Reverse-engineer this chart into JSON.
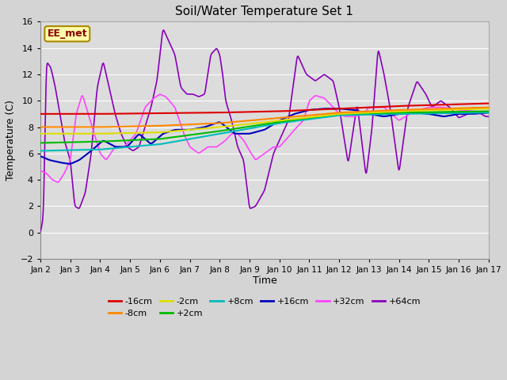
{
  "title": "Soil/Water Temperature Set 1",
  "xlabel": "Time",
  "ylabel": "Temperature (C)",
  "ylim": [
    -2,
    16
  ],
  "xlim": [
    0,
    15
  ],
  "annotation": "EE_met",
  "fig_facecolor": "#d8d8d8",
  "ax_facecolor": "#e0e0e0",
  "legend": [
    {
      "label": "-16cm",
      "color": "#dd0000"
    },
    {
      "label": "-8cm",
      "color": "#ff8800"
    },
    {
      "label": "-2cm",
      "color": "#dddd00"
    },
    {
      "label": "+2cm",
      "color": "#00bb00"
    },
    {
      "label": "+8cm",
      "color": "#00bbbb"
    },
    {
      "label": "+16cm",
      "color": "#0000bb"
    },
    {
      "label": "+32cm",
      "color": "#ff44ff"
    },
    {
      "label": "+64cm",
      "color": "#8800bb"
    }
  ],
  "xtick_labels": [
    "Jan 2",
    "Jan 3",
    "Jan 4",
    "Jan 5",
    "Jan 6",
    "Jan 7",
    "Jan 8",
    "Jan 9",
    "Jan 10",
    "Jan 11",
    "Jan 12",
    "Jan 13",
    "Jan 14",
    "Jan 15",
    "Jan 16",
    "Jan 17"
  ],
  "ytick_values": [
    -2,
    0,
    2,
    4,
    6,
    8,
    10,
    12,
    14,
    16
  ],
  "cp_m16_x": [
    0,
    2,
    4,
    6,
    8,
    10,
    12,
    15
  ],
  "cp_m16_y": [
    9.0,
    9.0,
    9.05,
    9.1,
    9.2,
    9.4,
    9.6,
    9.8
  ],
  "cp_m8_x": [
    0,
    2,
    4,
    6,
    8,
    10,
    12,
    15
  ],
  "cp_m8_y": [
    8.0,
    8.0,
    8.1,
    8.3,
    8.7,
    9.1,
    9.3,
    9.5
  ],
  "cp_m2_x": [
    0,
    2,
    4,
    6,
    8,
    10,
    12,
    15
  ],
  "cp_m2_y": [
    7.5,
    7.5,
    7.6,
    8.0,
    8.5,
    9.0,
    9.2,
    9.4
  ],
  "cp_p2_x": [
    0,
    2,
    4,
    6,
    8,
    10,
    12,
    15
  ],
  "cp_p2_y": [
    6.8,
    6.9,
    7.1,
    7.7,
    8.4,
    9.0,
    9.1,
    9.2
  ],
  "cp_p8_x": [
    0,
    2,
    4,
    6,
    8,
    10,
    12,
    15
  ],
  "cp_p8_y": [
    6.2,
    6.3,
    6.7,
    7.5,
    8.3,
    8.9,
    9.0,
    9.1
  ],
  "cp_p16_x": [
    0,
    0.3,
    0.7,
    1.0,
    1.3,
    1.7,
    2.1,
    2.5,
    2.9,
    3.3,
    3.7,
    4.1,
    4.5,
    5.0,
    5.5,
    6.0,
    6.5,
    7.0,
    7.5,
    8.0,
    8.5,
    9.0,
    9.5,
    10.0,
    10.5,
    11.0,
    11.5,
    12.0,
    12.5,
    13.0,
    13.5,
    14.0,
    14.5,
    15.0
  ],
  "cp_p16_y": [
    5.8,
    5.5,
    5.3,
    5.2,
    5.5,
    6.2,
    7.0,
    6.5,
    6.5,
    7.5,
    6.7,
    7.5,
    7.8,
    7.8,
    8.0,
    8.4,
    7.5,
    7.5,
    7.8,
    8.5,
    9.0,
    9.3,
    9.4,
    9.4,
    9.3,
    9.0,
    8.8,
    9.0,
    9.1,
    9.0,
    8.8,
    9.0,
    9.0,
    9.1
  ],
  "cp_p32_x": [
    0,
    0.2,
    0.4,
    0.6,
    0.8,
    1.0,
    1.2,
    1.4,
    1.6,
    1.8,
    2.0,
    2.2,
    2.5,
    2.8,
    3.0,
    3.2,
    3.5,
    3.8,
    4.0,
    4.2,
    4.5,
    4.8,
    5.0,
    5.3,
    5.6,
    5.9,
    6.2,
    6.4,
    6.6,
    6.8,
    7.0,
    7.2,
    7.5,
    7.8,
    8.0,
    8.2,
    8.5,
    8.8,
    9.0,
    9.2,
    9.5,
    9.8,
    10.0,
    10.2,
    10.5,
    10.8,
    11.0,
    11.5,
    12.0,
    12.5,
    13.0,
    13.5,
    14.0,
    14.5,
    15.0
  ],
  "cp_p32_y": [
    4.7,
    4.5,
    4.0,
    3.8,
    4.5,
    5.5,
    9.0,
    10.5,
    9.0,
    7.5,
    6.0,
    5.5,
    6.5,
    6.5,
    7.0,
    7.5,
    9.5,
    10.2,
    10.5,
    10.3,
    9.5,
    7.5,
    6.5,
    6.0,
    6.5,
    6.5,
    7.0,
    7.5,
    7.5,
    7.0,
    6.2,
    5.5,
    6.0,
    6.5,
    6.5,
    7.0,
    7.8,
    8.5,
    10.0,
    10.4,
    10.2,
    9.5,
    9.0,
    8.8,
    8.8,
    9.0,
    9.5,
    9.5,
    8.5,
    9.2,
    9.5,
    9.5,
    9.3,
    9.2,
    9.1
  ],
  "cp_p64_x": [
    0,
    0.1,
    0.2,
    0.35,
    0.5,
    0.65,
    0.8,
    1.0,
    1.15,
    1.3,
    1.5,
    1.7,
    1.9,
    2.1,
    2.3,
    2.5,
    2.7,
    2.9,
    3.1,
    3.3,
    3.5,
    3.7,
    3.9,
    4.1,
    4.3,
    4.5,
    4.7,
    4.9,
    5.1,
    5.3,
    5.5,
    5.7,
    5.9,
    6.0,
    6.1,
    6.2,
    6.4,
    6.6,
    6.8,
    7.0,
    7.2,
    7.5,
    7.8,
    8.0,
    8.3,
    8.6,
    8.9,
    9.2,
    9.5,
    9.8,
    10.0,
    10.3,
    10.6,
    10.9,
    11.1,
    11.3,
    11.5,
    11.7,
    12.0,
    12.3,
    12.6,
    12.9,
    13.1,
    13.4,
    13.7,
    14.0,
    14.3,
    14.6,
    14.9,
    15.0
  ],
  "cp_p64_y": [
    0.0,
    1.2,
    13.0,
    12.5,
    11.0,
    9.0,
    7.0,
    5.5,
    2.0,
    1.8,
    3.0,
    6.0,
    11.0,
    13.0,
    11.0,
    9.0,
    7.5,
    6.5,
    6.2,
    6.5,
    8.0,
    9.5,
    11.5,
    15.5,
    14.5,
    13.5,
    11.0,
    10.5,
    10.5,
    10.3,
    10.5,
    13.5,
    14.0,
    13.5,
    12.0,
    10.0,
    8.5,
    6.5,
    5.5,
    1.8,
    2.0,
    3.2,
    6.0,
    7.0,
    8.5,
    13.5,
    12.0,
    11.5,
    12.0,
    11.5,
    9.5,
    5.2,
    9.8,
    4.2,
    8.0,
    14.0,
    12.0,
    9.5,
    4.5,
    9.5,
    11.5,
    10.5,
    9.5,
    10.0,
    9.5,
    8.7,
    9.0,
    9.2,
    8.8,
    8.8
  ]
}
